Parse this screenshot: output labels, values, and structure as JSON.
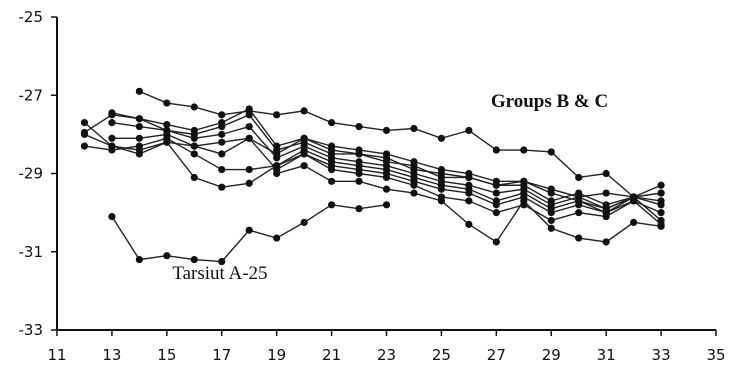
{
  "chart_data": {
    "type": "line",
    "title": "",
    "xlabel": "",
    "ylabel": "",
    "xlim": [
      11,
      35
    ],
    "ylim": [
      -33,
      -25
    ],
    "x_ticks": [
      11,
      13,
      15,
      17,
      19,
      21,
      23,
      25,
      27,
      29,
      31,
      33,
      35
    ],
    "y_ticks": [
      -25,
      -27,
      -29,
      -31,
      -33
    ],
    "grid": false,
    "legend": "none",
    "annotations": [
      {
        "text": "Groups B & C",
        "x": 26.8,
        "y": -27.3,
        "bold": true
      },
      {
        "text": "Tarsiut A-25",
        "x": 15.2,
        "y": -31.7,
        "bold": false
      }
    ],
    "series": [
      {
        "x": [
          14,
          15,
          16,
          17,
          18,
          19,
          20,
          21,
          22,
          23,
          24,
          25,
          26,
          27,
          28,
          29,
          30,
          31,
          32,
          33
        ],
        "values": [
          -26.9,
          -27.2,
          -27.3,
          -27.5,
          -27.4,
          -27.5,
          -27.4,
          -27.7,
          -27.8,
          -27.9,
          -27.85,
          -28.1,
          -27.9,
          -28.4,
          -28.4,
          -28.45,
          -29.1,
          -29.0,
          -29.6,
          -29.3
        ]
      },
      {
        "x": [
          12,
          13,
          14,
          15,
          16,
          17,
          18,
          19,
          20,
          21,
          22,
          23,
          24,
          25,
          26,
          27,
          28,
          29,
          30,
          31,
          32,
          33
        ],
        "values": [
          -27.7,
          -28.3,
          -28.4,
          -28.2,
          -28.3,
          -28.5,
          -28.1,
          -28.5,
          -28.1,
          -28.3,
          -28.4,
          -28.5,
          -28.7,
          -28.9,
          -29.0,
          -29.2,
          -29.2,
          -29.4,
          -29.6,
          -29.5,
          -29.6,
          -29.5
        ]
      },
      {
        "x": [
          12,
          13,
          14,
          15,
          16,
          17,
          18,
          19,
          20,
          21,
          22,
          23,
          24,
          25,
          26,
          27,
          28,
          29,
          30,
          31,
          32,
          33
        ],
        "values": [
          -27.95,
          -27.5,
          -27.6,
          -27.9,
          -28.0,
          -27.8,
          -27.5,
          -28.4,
          -28.2,
          -28.5,
          -28.5,
          -28.7,
          -28.8,
          -29.1,
          -29.1,
          -29.3,
          -29.3,
          -29.7,
          -29.5,
          -29.8,
          -29.6,
          -29.7
        ]
      },
      {
        "x": [
          12,
          13,
          14,
          15,
          16,
          17,
          18,
          19,
          20,
          21,
          22,
          23,
          24,
          25,
          26,
          27,
          28,
          29,
          30,
          31,
          32,
          33
        ],
        "values": [
          -28.3,
          -28.4,
          -28.3,
          -28.1,
          -28.5,
          -28.9,
          -28.9,
          -28.8,
          -28.4,
          -28.7,
          -28.8,
          -28.9,
          -29.1,
          -29.3,
          -29.4,
          -29.7,
          -29.5,
          -29.9,
          -29.7,
          -30.0,
          -29.6,
          -30.2
        ]
      },
      {
        "x": [
          12,
          13,
          14,
          15,
          16,
          17,
          18,
          19,
          20,
          21,
          22,
          23,
          24,
          25,
          26,
          27,
          28,
          29,
          30,
          31,
          32,
          33
        ],
        "values": [
          -28.0,
          -28.3,
          -28.5,
          -28.2,
          -29.1,
          -29.35,
          -29.25,
          -28.8,
          -28.5,
          -28.9,
          -29.0,
          -29.1,
          -29.3,
          -29.6,
          -29.7,
          -30.0,
          -29.8,
          -30.2,
          -30.0,
          -30.1,
          -29.7,
          -30.3
        ]
      },
      {
        "x": [
          13,
          14,
          15,
          16,
          17,
          18,
          19,
          20,
          21,
          22,
          23,
          24,
          25,
          26,
          27,
          28,
          29,
          30,
          31,
          32,
          33
        ],
        "values": [
          -27.7,
          -27.8,
          -27.9,
          -28.1,
          -28.0,
          -27.8,
          -28.6,
          -28.3,
          -28.6,
          -28.7,
          -28.8,
          -29.0,
          -29.2,
          -29.3,
          -29.5,
          -29.4,
          -29.8,
          -29.6,
          -29.9,
          -29.6,
          -29.8
        ]
      },
      {
        "x": [
          13,
          14,
          15,
          16,
          17,
          18,
          19,
          20,
          21,
          22,
          23,
          24,
          25,
          26,
          27,
          28,
          29,
          30,
          31,
          32,
          33
        ],
        "values": [
          -28.1,
          -28.1,
          -28.0,
          -28.3,
          -28.2,
          -28.1,
          -28.9,
          -28.5,
          -28.8,
          -28.9,
          -29.0,
          -29.2,
          -29.4,
          -29.5,
          -29.8,
          -29.6,
          -30.0,
          -29.8,
          -30.0,
          -29.7,
          -30.0
        ]
      },
      {
        "x": [
          13,
          14,
          15,
          16,
          17,
          18,
          19,
          20,
          21,
          22,
          23,
          24,
          25,
          26,
          27,
          28,
          29,
          30,
          31,
          32,
          33
        ],
        "values": [
          -27.45,
          -27.6,
          -27.75,
          -27.9,
          -27.7,
          -27.35,
          -28.3,
          -28.1,
          -28.4,
          -28.5,
          -28.6,
          -28.9,
          -29.0,
          -29.1,
          -29.3,
          -29.2,
          -29.5,
          -29.7,
          -29.9,
          -29.6,
          -29.5
        ]
      },
      {
        "x": [
          19,
          20,
          21,
          22,
          23,
          24,
          25,
          26,
          27,
          28,
          29,
          30,
          31,
          32,
          33
        ],
        "values": [
          -29.0,
          -28.8,
          -29.2,
          -29.2,
          -29.4,
          -29.5,
          -29.7,
          -30.3,
          -30.75,
          -29.7,
          -30.4,
          -30.65,
          -30.75,
          -30.25,
          -30.35
        ]
      },
      {
        "x": [
          13,
          14,
          15,
          16,
          17,
          18,
          19,
          20,
          21,
          22,
          23
        ],
        "values": [
          -30.1,
          -31.2,
          -31.1,
          -31.2,
          -31.25,
          -30.45,
          -30.65,
          -30.25,
          -29.8,
          -29.9,
          -29.8
        ]
      }
    ]
  }
}
